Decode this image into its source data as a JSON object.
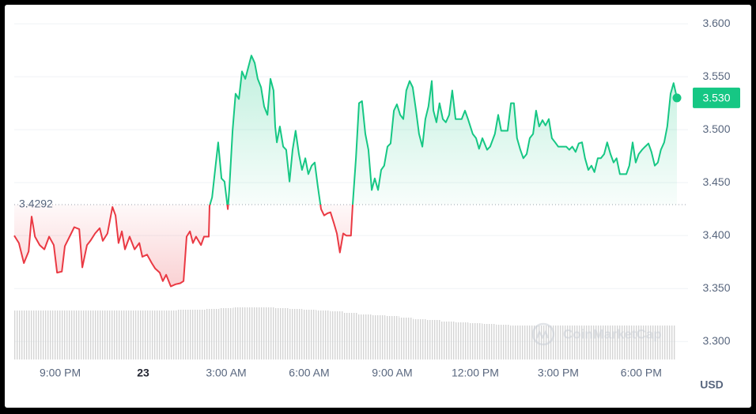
{
  "chart_data": {
    "type": "line",
    "x": [
      19.34,
      19.51,
      19.69,
      19.86,
      19.97,
      20.09,
      20.26,
      20.43,
      20.6,
      20.77,
      20.89,
      21.06,
      21.17,
      21.34,
      21.51,
      21.69,
      21.8,
      21.97,
      22.09,
      22.26,
      22.43,
      22.54,
      22.71,
      22.89,
      23.0,
      23.11,
      23.23,
      23.34,
      23.51,
      23.69,
      23.86,
      23.97,
      24.14,
      24.31,
      24.43,
      24.6,
      24.71,
      24.83,
      25.0,
      25.17,
      25.34,
      25.46,
      25.57,
      25.69,
      25.8,
      25.91,
      26.09,
      26.2,
      26.37,
      26.4,
      26.49,
      26.6,
      26.71,
      26.83,
      26.94,
      27.06,
      27.11,
      27.23,
      27.34,
      27.46,
      27.57,
      27.69,
      27.8,
      27.91,
      28.03,
      28.14,
      28.26,
      28.37,
      28.49,
      28.6,
      28.71,
      28.77,
      28.83,
      28.94,
      29.06,
      29.17,
      29.29,
      29.4,
      29.51,
      29.63,
      29.74,
      29.86,
      29.97,
      30.09,
      30.2,
      30.31,
      30.43,
      30.54,
      30.66,
      30.77,
      30.89,
      31.0,
      31.11,
      31.23,
      31.34,
      31.51,
      31.57,
      31.69,
      31.8,
      31.91,
      32.03,
      32.14,
      32.26,
      32.37,
      32.49,
      32.6,
      32.71,
      32.83,
      32.94,
      33.06,
      33.17,
      33.29,
      33.4,
      33.51,
      33.63,
      33.74,
      33.86,
      33.97,
      34.09,
      34.2,
      34.31,
      34.43,
      34.49,
      34.6,
      34.71,
      34.83,
      34.94,
      35.06,
      35.17,
      35.29,
      35.4,
      35.51,
      35.63,
      35.74,
      35.91,
      36.03,
      36.14,
      36.26,
      36.43,
      36.54,
      36.71,
      36.83,
      36.94,
      37.06,
      37.17,
      37.29,
      37.4,
      37.51,
      37.63,
      37.74,
      37.86,
      37.97,
      38.09,
      38.2,
      38.31,
      38.43,
      38.54,
      38.66,
      38.77,
      38.89,
      39.0,
      39.17,
      39.29,
      39.4,
      39.51,
      39.63,
      39.74,
      39.86,
      39.97,
      40.09,
      40.2,
      40.31,
      40.43,
      40.54,
      40.66,
      40.77,
      40.89,
      41.0,
      41.11,
      41.23,
      41.34,
      41.46,
      41.57,
      41.69,
      41.8,
      41.91,
      42.03,
      42.14,
      42.26,
      42.37,
      42.49,
      42.6,
      42.71,
      42.83,
      42.94,
      43.06,
      43.17,
      43.29
    ],
    "values": [
      3.4,
      3.393,
      3.374,
      3.385,
      3.418,
      3.399,
      3.391,
      3.387,
      3.399,
      3.391,
      3.365,
      3.366,
      3.39,
      3.399,
      3.408,
      3.406,
      3.37,
      3.391,
      3.395,
      3.402,
      3.407,
      3.395,
      3.402,
      3.427,
      3.419,
      3.393,
      3.404,
      3.387,
      3.399,
      3.387,
      3.393,
      3.38,
      3.382,
      3.374,
      3.369,
      3.365,
      3.357,
      3.363,
      3.352,
      3.354,
      3.355,
      3.357,
      3.399,
      3.404,
      3.393,
      3.399,
      3.391,
      3.399,
      3.399,
      3.428,
      3.436,
      3.462,
      3.488,
      3.454,
      3.451,
      3.425,
      3.443,
      3.499,
      3.534,
      3.529,
      3.555,
      3.548,
      3.559,
      3.57,
      3.563,
      3.548,
      3.54,
      3.522,
      3.514,
      3.548,
      3.537,
      3.503,
      3.488,
      3.503,
      3.484,
      3.481,
      3.451,
      3.481,
      3.499,
      3.477,
      3.462,
      3.473,
      3.458,
      3.466,
      3.469,
      3.447,
      3.425,
      3.419,
      3.421,
      3.422,
      3.412,
      3.402,
      3.384,
      3.402,
      3.4,
      3.4,
      3.428,
      3.473,
      3.525,
      3.527,
      3.496,
      3.481,
      3.443,
      3.454,
      3.443,
      3.462,
      3.466,
      3.484,
      3.487,
      3.518,
      3.524,
      3.514,
      3.51,
      3.537,
      3.546,
      3.54,
      3.518,
      3.496,
      3.484,
      3.51,
      3.522,
      3.546,
      3.518,
      3.507,
      3.525,
      3.51,
      3.507,
      3.514,
      3.537,
      3.51,
      3.51,
      3.51,
      3.518,
      3.51,
      3.496,
      3.492,
      3.482,
      3.492,
      3.481,
      3.484,
      3.496,
      3.514,
      3.499,
      3.499,
      3.499,
      3.525,
      3.525,
      3.492,
      3.481,
      3.473,
      3.477,
      3.492,
      3.496,
      3.518,
      3.503,
      3.509,
      3.504,
      3.51,
      3.492,
      3.488,
      3.484,
      3.484,
      3.484,
      3.481,
      3.484,
      3.479,
      3.487,
      3.488,
      3.473,
      3.462,
      3.466,
      3.46,
      3.473,
      3.473,
      3.477,
      3.488,
      3.477,
      3.469,
      3.473,
      3.458,
      3.458,
      3.458,
      3.466,
      3.488,
      3.469,
      3.477,
      3.481,
      3.484,
      3.487,
      3.479,
      3.466,
      3.469,
      3.481,
      3.488,
      3.503,
      3.534,
      3.544,
      3.53
    ],
    "up_color": "#16c784",
    "down_color": "#ea3943",
    "reference": 3.4292,
    "last_price": {
      "value": 3.53,
      "label": "3.530"
    },
    "xlim": [
      19.34,
      43.69
    ],
    "xticks": [
      {
        "value": 21,
        "label": "9:00 PM"
      },
      {
        "value": 24,
        "label": "23"
      },
      {
        "value": 27,
        "label": "3:00 AM"
      },
      {
        "value": 30,
        "label": "6:00 AM"
      },
      {
        "value": 33,
        "label": "9:00 AM"
      },
      {
        "value": 36,
        "label": "12:00 PM"
      },
      {
        "value": 39,
        "label": "3:00 PM"
      },
      {
        "value": 42,
        "label": "6:00 PM"
      }
    ],
    "ylim": [
      3.283,
      3.615
    ],
    "yticks": [
      {
        "value": 3.6,
        "label": "3.600"
      },
      {
        "value": 3.55,
        "label": "3.550"
      },
      {
        "value": 3.5,
        "label": "3.500"
      },
      {
        "value": 3.45,
        "label": "3.450"
      },
      {
        "value": 3.4,
        "label": "3.400"
      },
      {
        "value": 3.35,
        "label": "3.350"
      },
      {
        "value": 3.3,
        "label": "3.300"
      }
    ],
    "grid": true,
    "volume": {
      "x": [
        19.5,
        20,
        20.5,
        21,
        21.5,
        22,
        22.5,
        23,
        23.5,
        24,
        24.5,
        25,
        25.5,
        26,
        26.5,
        27,
        27.5,
        28,
        28.5,
        29,
        29.5,
        30,
        30.5,
        31,
        31.5,
        32,
        32.5,
        33,
        33.5,
        34,
        34.5,
        35,
        35.5,
        36,
        36.5,
        37,
        37.5,
        38,
        38.5,
        39,
        39.5,
        40,
        40.5,
        41,
        41.5,
        42,
        42.5,
        43
      ],
      "values": [
        62,
        62,
        62,
        62,
        62,
        62,
        62,
        62,
        62,
        62,
        62,
        62,
        63,
        63,
        64,
        65,
        66,
        66,
        66,
        65,
        64,
        63,
        62,
        61,
        59,
        57,
        56,
        55,
        53,
        51,
        50,
        48,
        47,
        46,
        45,
        44,
        43,
        43,
        43,
        43,
        43,
        43,
        43,
        43,
        43,
        43,
        43,
        43
      ],
      "lim": [
        0,
        100
      ],
      "color": "#d4d4d4"
    },
    "currency": "USD",
    "watermark": "CoinMarketCap"
  }
}
